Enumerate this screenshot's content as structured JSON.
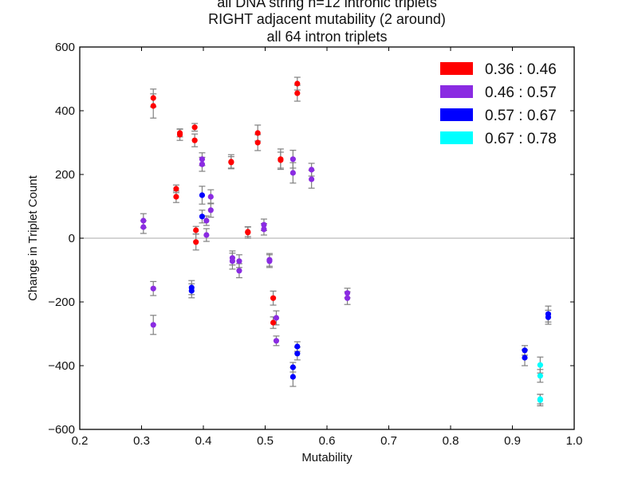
{
  "chart_data": {
    "type": "scatter",
    "title_lines": [
      "all DNA string n=12 intronic triplets",
      "RIGHT adjacent mutability (2 around)",
      "all 64 intron triplets"
    ],
    "xlabel": "Mutability",
    "ylabel": "Change in Triplet Count",
    "xlim": [
      0.2,
      1.0
    ],
    "ylim": [
      -600,
      600
    ],
    "xticks": [
      "0.2",
      "0.3",
      "0.4",
      "0.5",
      "0.6",
      "0.7",
      "0.8",
      "0.9",
      "1.0"
    ],
    "yticks": [
      "−600",
      "−400",
      "−200",
      "0",
      "200",
      "400",
      "600"
    ],
    "grid": false,
    "zero_line": true,
    "error_bar_color": "#808080",
    "legend_position": "top-right",
    "series": [
      {
        "name": "0.36 : 0.46",
        "color": "#ff0000",
        "points": [
          {
            "x": 0.319,
            "y": 440,
            "err": 28
          },
          {
            "x": 0.319,
            "y": 415,
            "err": 38
          },
          {
            "x": 0.362,
            "y": 330,
            "err": 12
          },
          {
            "x": 0.362,
            "y": 325,
            "err": 18
          },
          {
            "x": 0.356,
            "y": 155,
            "err": 12
          },
          {
            "x": 0.356,
            "y": 130,
            "err": 18
          },
          {
            "x": 0.386,
            "y": 348,
            "err": 12
          },
          {
            "x": 0.386,
            "y": 307,
            "err": 20
          },
          {
            "x": 0.388,
            "y": 25,
            "err": 12
          },
          {
            "x": 0.388,
            "y": -12,
            "err": 25
          },
          {
            "x": 0.445,
            "y": 240,
            "err": 22
          },
          {
            "x": 0.445,
            "y": 238,
            "err": 18
          },
          {
            "x": 0.472,
            "y": 20,
            "err": 15
          },
          {
            "x": 0.472,
            "y": 18,
            "err": 18
          },
          {
            "x": 0.488,
            "y": 330,
            "err": 25
          },
          {
            "x": 0.488,
            "y": 300,
            "err": 25
          },
          {
            "x": 0.525,
            "y": 248,
            "err": 32
          },
          {
            "x": 0.525,
            "y": 245,
            "err": 25
          },
          {
            "x": 0.552,
            "y": 485,
            "err": 20
          },
          {
            "x": 0.552,
            "y": 455,
            "err": 25
          },
          {
            "x": 0.513,
            "y": -188,
            "err": 22
          },
          {
            "x": 0.513,
            "y": -265,
            "err": 18
          }
        ]
      },
      {
        "name": "0.46 : 0.57",
        "color": "#8a2be2",
        "points": [
          {
            "x": 0.303,
            "y": 55,
            "err": 22
          },
          {
            "x": 0.303,
            "y": 35,
            "err": 20
          },
          {
            "x": 0.319,
            "y": -158,
            "err": 22
          },
          {
            "x": 0.319,
            "y": -272,
            "err": 30
          },
          {
            "x": 0.398,
            "y": 248,
            "err": 20
          },
          {
            "x": 0.398,
            "y": 232,
            "err": 22
          },
          {
            "x": 0.405,
            "y": 55,
            "err": 15
          },
          {
            "x": 0.405,
            "y": 10,
            "err": 20
          },
          {
            "x": 0.412,
            "y": 130,
            "err": 22
          },
          {
            "x": 0.412,
            "y": 88,
            "err": 22
          },
          {
            "x": 0.447,
            "y": -62,
            "err": 22
          },
          {
            "x": 0.447,
            "y": -72,
            "err": 25
          },
          {
            "x": 0.458,
            "y": -72,
            "err": 20
          },
          {
            "x": 0.458,
            "y": -102,
            "err": 22
          },
          {
            "x": 0.498,
            "y": 42,
            "err": 18
          },
          {
            "x": 0.498,
            "y": 28,
            "err": 18
          },
          {
            "x": 0.507,
            "y": -68,
            "err": 20
          },
          {
            "x": 0.507,
            "y": -72,
            "err": 20
          },
          {
            "x": 0.518,
            "y": -250,
            "err": 22
          },
          {
            "x": 0.518,
            "y": -322,
            "err": 15
          },
          {
            "x": 0.545,
            "y": 248,
            "err": 28
          },
          {
            "x": 0.545,
            "y": 205,
            "err": 32
          },
          {
            "x": 0.575,
            "y": 215,
            "err": 20
          },
          {
            "x": 0.575,
            "y": 185,
            "err": 28
          },
          {
            "x": 0.633,
            "y": -172,
            "err": 15
          },
          {
            "x": 0.633,
            "y": -188,
            "err": 20
          }
        ]
      },
      {
        "name": "0.57 : 0.67",
        "color": "#0000ff",
        "points": [
          {
            "x": 0.398,
            "y": 135,
            "err": 28
          },
          {
            "x": 0.398,
            "y": 68,
            "err": 20
          },
          {
            "x": 0.381,
            "y": -155,
            "err": 22
          },
          {
            "x": 0.381,
            "y": -165,
            "err": 22
          },
          {
            "x": 0.552,
            "y": -340,
            "err": 15
          },
          {
            "x": 0.552,
            "y": -362,
            "err": 20
          },
          {
            "x": 0.545,
            "y": -405,
            "err": 15
          },
          {
            "x": 0.545,
            "y": -435,
            "err": 30
          },
          {
            "x": 0.92,
            "y": -352,
            "err": 15
          },
          {
            "x": 0.92,
            "y": -375,
            "err": 25
          },
          {
            "x": 0.958,
            "y": -238,
            "err": 25
          },
          {
            "x": 0.958,
            "y": -248,
            "err": 22
          }
        ]
      },
      {
        "name": "0.67 : 0.78",
        "color": "#00ffff",
        "points": [
          {
            "x": 0.945,
            "y": -398,
            "err": 25
          },
          {
            "x": 0.945,
            "y": -432,
            "err": 20
          },
          {
            "x": 0.945,
            "y": -508,
            "err": 18
          },
          {
            "x": 0.945,
            "y": -505,
            "err": 15
          }
        ]
      }
    ]
  }
}
